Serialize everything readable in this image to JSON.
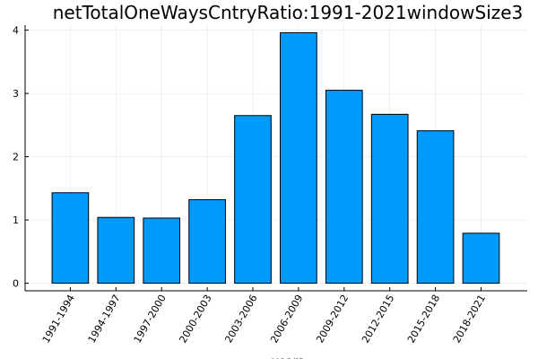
{
  "chart_data": {
    "type": "bar",
    "title": "netTotalOneWaysCntryRatio:1991-2021windowSize3",
    "xlabel": "years",
    "ylabel": "",
    "categories": [
      "1991-1994",
      "1994-1997",
      "1997-2000",
      "2000-2003",
      "2003-2006",
      "2006-2009",
      "2009-2012",
      "2012-2015",
      "2015-2018",
      "2018-2021"
    ],
    "values": [
      1.43,
      1.04,
      1.03,
      1.32,
      2.65,
      3.96,
      3.05,
      2.67,
      2.41,
      0.79
    ],
    "ylim": [
      -0.12,
      4.08
    ],
    "yticks": [
      "0",
      "1",
      "2",
      "3",
      "4"
    ],
    "grid": true,
    "legend": "none",
    "bar_color": "#009AFA"
  }
}
